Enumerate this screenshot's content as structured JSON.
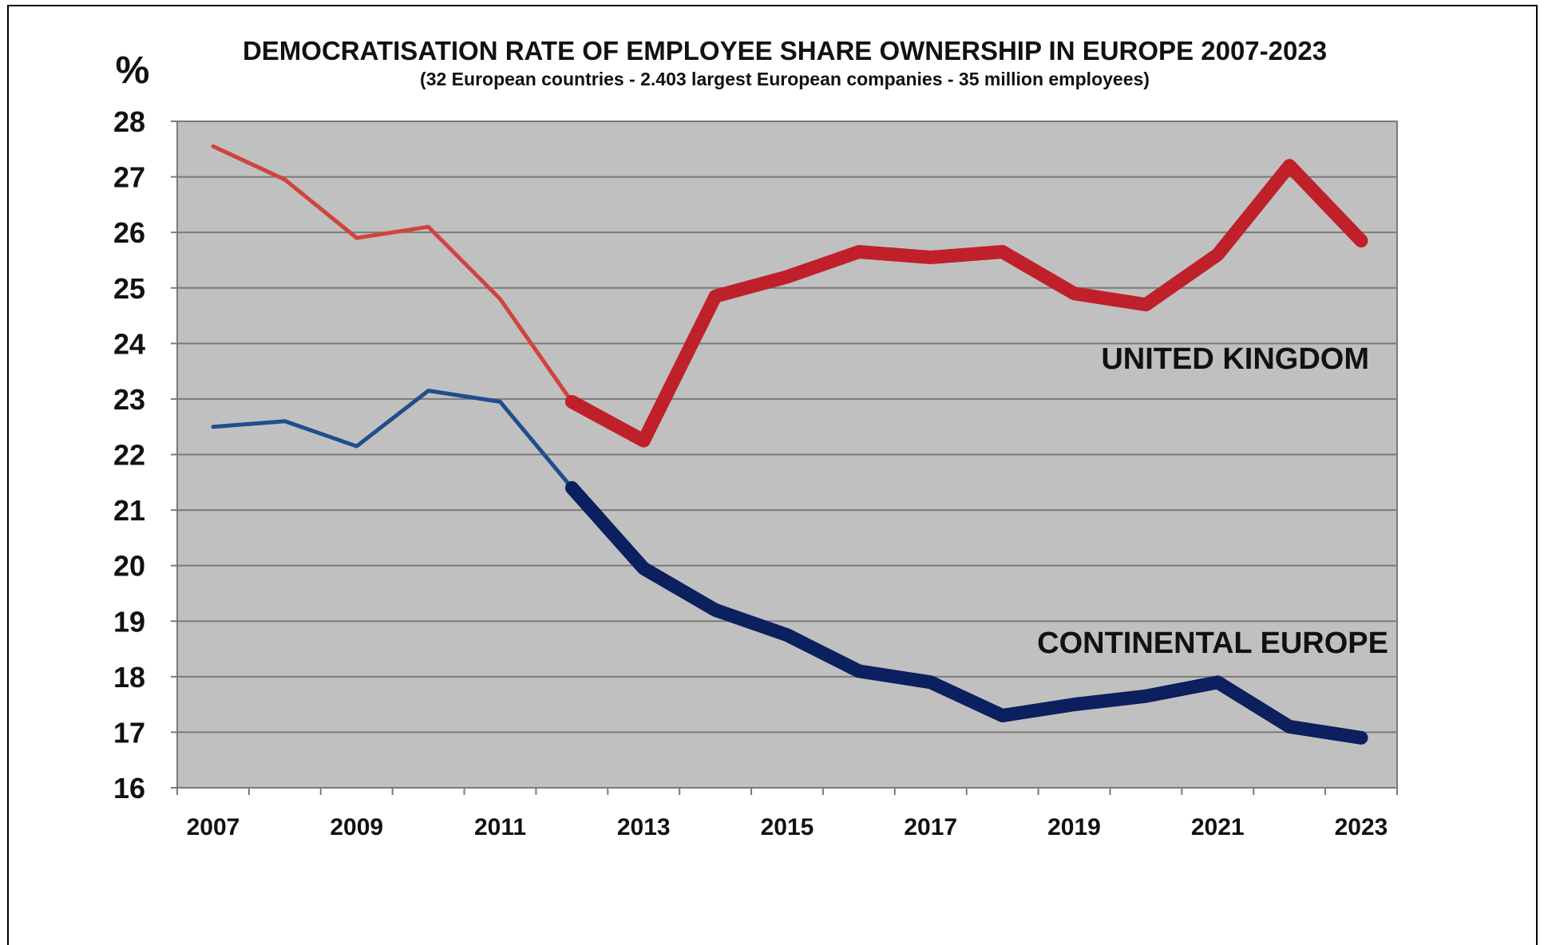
{
  "chart_data": {
    "type": "line",
    "title": "DEMOCRATISATION RATE OF EMPLOYEE SHARE OWNERSHIP IN EUROPE 2007-2023",
    "subtitle": "(32 European countries - 2.403 largest European companies -  35 million employees)",
    "ylabel": "%",
    "xlabel": "",
    "ylim": [
      16,
      28
    ],
    "yticks": [
      "16",
      "17",
      "18",
      "19",
      "20",
      "21",
      "22",
      "23",
      "24",
      "25",
      "26",
      "27",
      "28"
    ],
    "x": [
      2007,
      2008,
      2009,
      2010,
      2011,
      2012,
      2013,
      2014,
      2015,
      2016,
      2017,
      2018,
      2019,
      2020,
      2021,
      2022,
      2023
    ],
    "xtick_labels": [
      "2007",
      "2009",
      "2011",
      "2013",
      "2015",
      "2017",
      "2019",
      "2021",
      "2023"
    ],
    "grid": true,
    "plot_background": "#c0c0c0",
    "series": [
      {
        "name": "UNITED KINGDOM",
        "color_early": "#d0443e",
        "color": "#c0202a",
        "thick_from_index": 5,
        "values": [
          27.55,
          26.95,
          25.9,
          26.1,
          24.8,
          22.95,
          22.25,
          24.85,
          25.2,
          25.65,
          25.55,
          25.65,
          24.9,
          24.7,
          25.6,
          27.2,
          25.85
        ]
      },
      {
        "name": "CONTINENTAL EUROPE",
        "color_early": "#1f4e8c",
        "color": "#0c1f5e",
        "thick_from_index": 5,
        "values": [
          22.5,
          22.6,
          22.15,
          23.15,
          22.95,
          21.4,
          19.95,
          19.2,
          18.75,
          18.1,
          17.9,
          17.3,
          17.5,
          17.65,
          17.9,
          17.1,
          16.9
        ]
      }
    ]
  }
}
